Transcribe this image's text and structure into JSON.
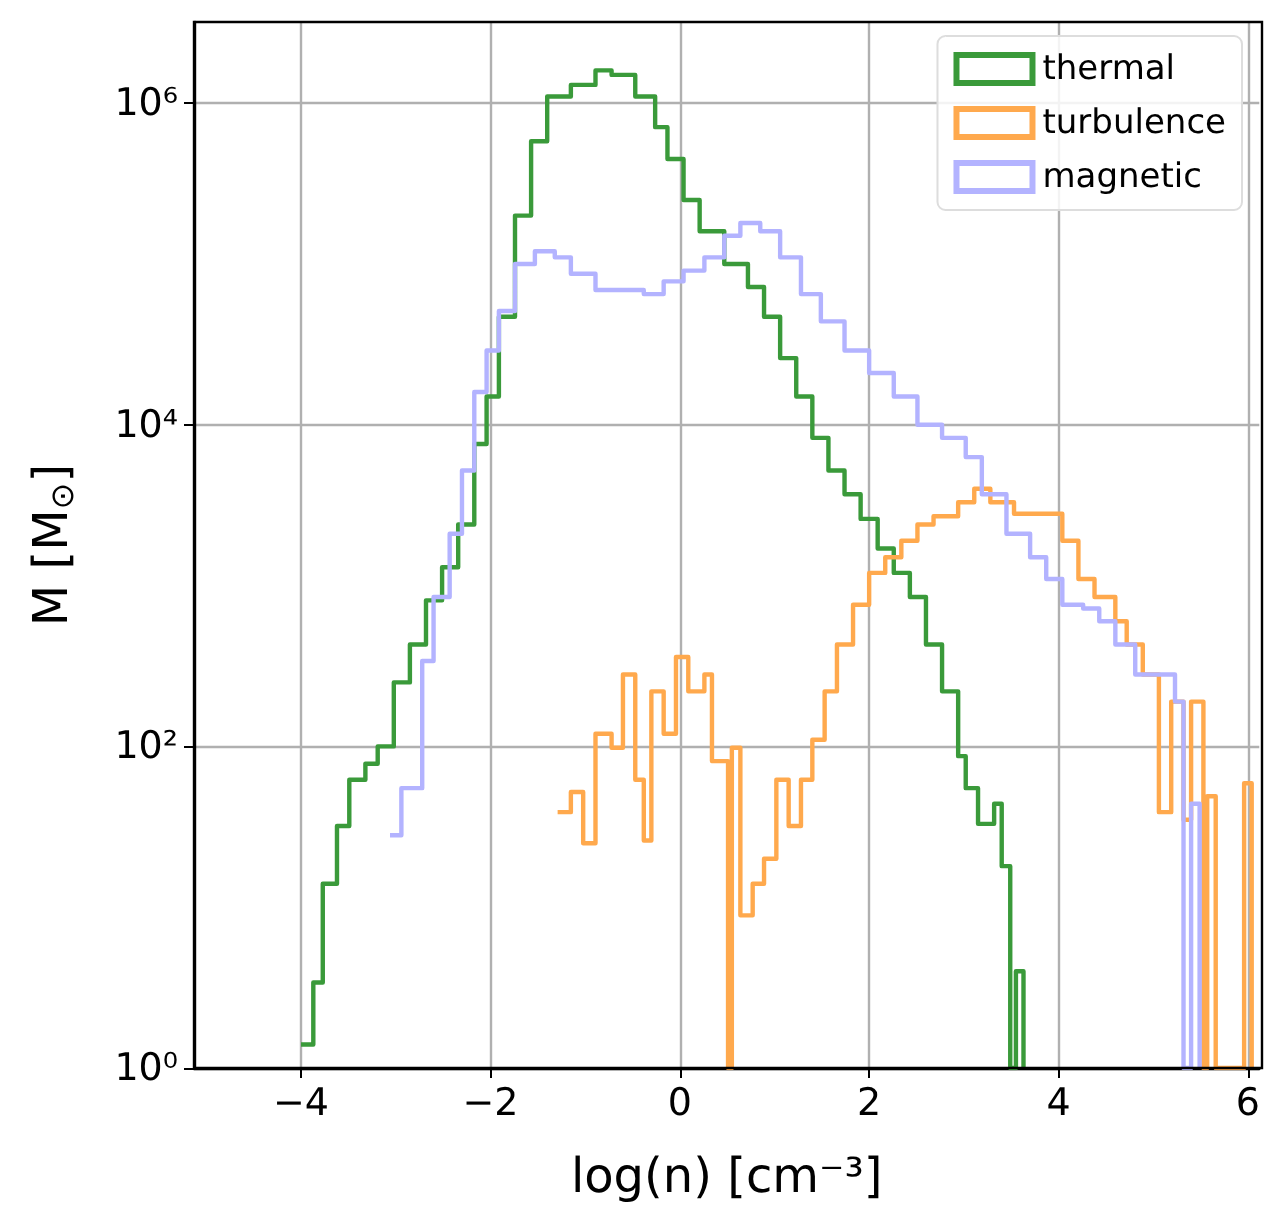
{
  "chart_data": {
    "type": "step",
    "xlabel": "log(n) [cm⁻³]",
    "ylabel": "M [M$_{⊙}$]",
    "log": "y",
    "grid": true,
    "legend": "top right",
    "line_style": "solid",
    "marker": "none",
    "xlim": [
      -5.13,
      6.12
    ],
    "xticks": [
      {
        "value": -4,
        "label": "−4"
      },
      {
        "value": -2,
        "label": "−2"
      },
      0,
      2,
      4,
      6
    ],
    "ylim": [
      1,
      3200000
    ],
    "yticks": [
      {
        "value": 1,
        "label": "10⁰"
      },
      {
        "value": 100,
        "label": "10²"
      },
      {
        "value": 10000,
        "label": "10⁴"
      },
      {
        "value": 1000000,
        "label": "10⁶"
      }
    ],
    "series": [
      {
        "name": "thermal",
        "color": "#3a9a3a",
        "x": [
          -4.0,
          -3.87,
          -3.77,
          -3.62,
          -3.49,
          -3.32,
          -3.19,
          -3.02,
          -2.85,
          -2.68,
          -2.51,
          -2.34,
          -2.17,
          -2.04,
          -1.91,
          -1.74,
          -1.57,
          -1.4,
          -1.15,
          -0.89,
          -0.72,
          -0.47,
          -0.26,
          -0.13,
          0.04,
          0.21,
          0.47,
          0.72,
          0.89,
          1.06,
          1.23,
          1.4,
          1.57,
          1.74,
          1.91,
          2.09,
          2.26,
          2.43,
          2.6,
          2.77,
          2.94,
          3.02,
          3.15,
          3.32,
          3.4,
          3.49,
          3.55,
          3.63
        ],
        "values": [
          1.4,
          3.4,
          14,
          32,
          62,
          78,
          100,
          250,
          430,
          810,
          1300,
          2400,
          7600,
          15000,
          47000,
          200000,
          580000,
          1100000,
          1300000,
          1600000,
          1500000,
          1100000,
          710000,
          450000,
          250000,
          160000,
          100000,
          72000,
          47000,
          26000,
          15000,
          8300,
          5200,
          3700,
          2600,
          1700,
          1200,
          850,
          430,
          220,
          87,
          55,
          33,
          44,
          18,
          1,
          4,
          1
        ]
      },
      {
        "name": "turbulence",
        "color": "#ffa94d",
        "x": [
          -1.29,
          -1.15,
          -1.02,
          -0.89,
          -0.72,
          -0.6,
          -0.47,
          -0.38,
          -0.3,
          -0.17,
          -0.04,
          0.09,
          0.26,
          0.34,
          0.51,
          0.55,
          0.64,
          0.77,
          0.89,
          1.02,
          1.15,
          1.28,
          1.4,
          1.53,
          1.66,
          1.83,
          2.0,
          2.17,
          2.34,
          2.51,
          2.68,
          2.94,
          3.11,
          3.28,
          3.53,
          3.79,
          4.04,
          4.21,
          4.38,
          4.6,
          4.72,
          4.89,
          5.06,
          5.19,
          5.32,
          5.4,
          5.53,
          5.57,
          5.66,
          5.96,
          6.04
        ],
        "values": [
          39,
          52,
          25,
          120,
          98,
          280,
          62,
          26,
          220,
          120,
          360,
          220,
          280,
          81,
          1,
          98,
          8.9,
          14,
          20,
          62,
          32,
          62,
          110,
          220,
          430,
          760,
          1200,
          1500,
          1900,
          2400,
          2700,
          3300,
          4000,
          3300,
          2800,
          2800,
          1900,
          1100,
          850,
          600,
          430,
          280,
          39,
          190,
          35,
          190,
          1,
          49,
          1,
          59,
          1
        ]
      },
      {
        "name": "magnetic",
        "color": "#b3b3ff",
        "x": [
          -3.06,
          -2.94,
          -2.72,
          -2.6,
          -2.43,
          -2.3,
          -2.17,
          -2.04,
          -1.91,
          -1.74,
          -1.53,
          -1.32,
          -1.15,
          -0.89,
          -0.64,
          -0.38,
          -0.17,
          0.04,
          0.26,
          0.47,
          0.64,
          0.85,
          1.06,
          1.28,
          1.49,
          1.74,
          2.0,
          2.26,
          2.51,
          2.77,
          3.02,
          3.19,
          3.45,
          3.7,
          3.87,
          4.04,
          4.26,
          4.43,
          4.6,
          4.81,
          5.02,
          5.23,
          5.32,
          5.4,
          5.49
        ],
        "values": [
          28,
          55,
          340,
          850,
          2100,
          5200,
          16000,
          29000,
          51000,
          100000,
          120000,
          110000,
          87000,
          69000,
          69000,
          65000,
          78000,
          91000,
          110000,
          150000,
          180000,
          160000,
          110000,
          65000,
          44000,
          29000,
          21000,
          15000,
          10000,
          8300,
          6300,
          3700,
          2100,
          1500,
          1100,
          760,
          720,
          600,
          430,
          280,
          280,
          190,
          1,
          44,
          1
        ]
      }
    ]
  }
}
